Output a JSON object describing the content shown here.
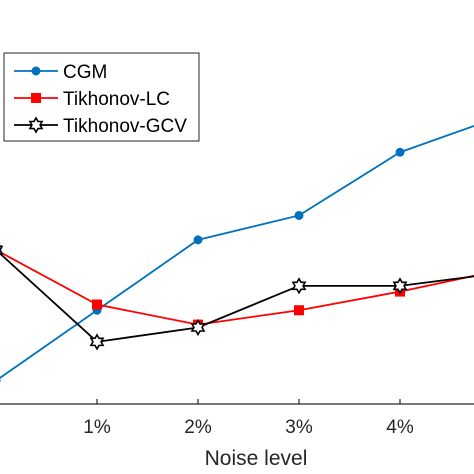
{
  "chart_data": {
    "type": "line",
    "xlabel": "Noise level",
    "ylabel": "",
    "title": "",
    "x": [
      0,
      1,
      2,
      3,
      4,
      5
    ],
    "x_tick_labels": [
      "",
      "1%",
      "2%",
      "3%",
      "4%",
      ""
    ],
    "grid": false,
    "legend_position": "top-left",
    "series": [
      {
        "name": "CGM",
        "color": "#0072BD",
        "marker": "circle",
        "values": [
          0.05,
          0.54,
          1.03,
          1.2,
          1.64,
          1.89
        ]
      },
      {
        "name": "Tikhonov-LC",
        "color": "#FF0000",
        "marker": "square",
        "values": [
          0.96,
          0.58,
          0.44,
          0.54,
          0.67,
          0.82
        ]
      },
      {
        "name": "Tikhonov-GCV",
        "color": "#000000",
        "marker": "hexagram",
        "values": [
          0.96,
          0.32,
          0.42,
          0.71,
          0.71,
          0.8
        ]
      }
    ],
    "ylim": [
      -0.6,
      2.7
    ]
  }
}
